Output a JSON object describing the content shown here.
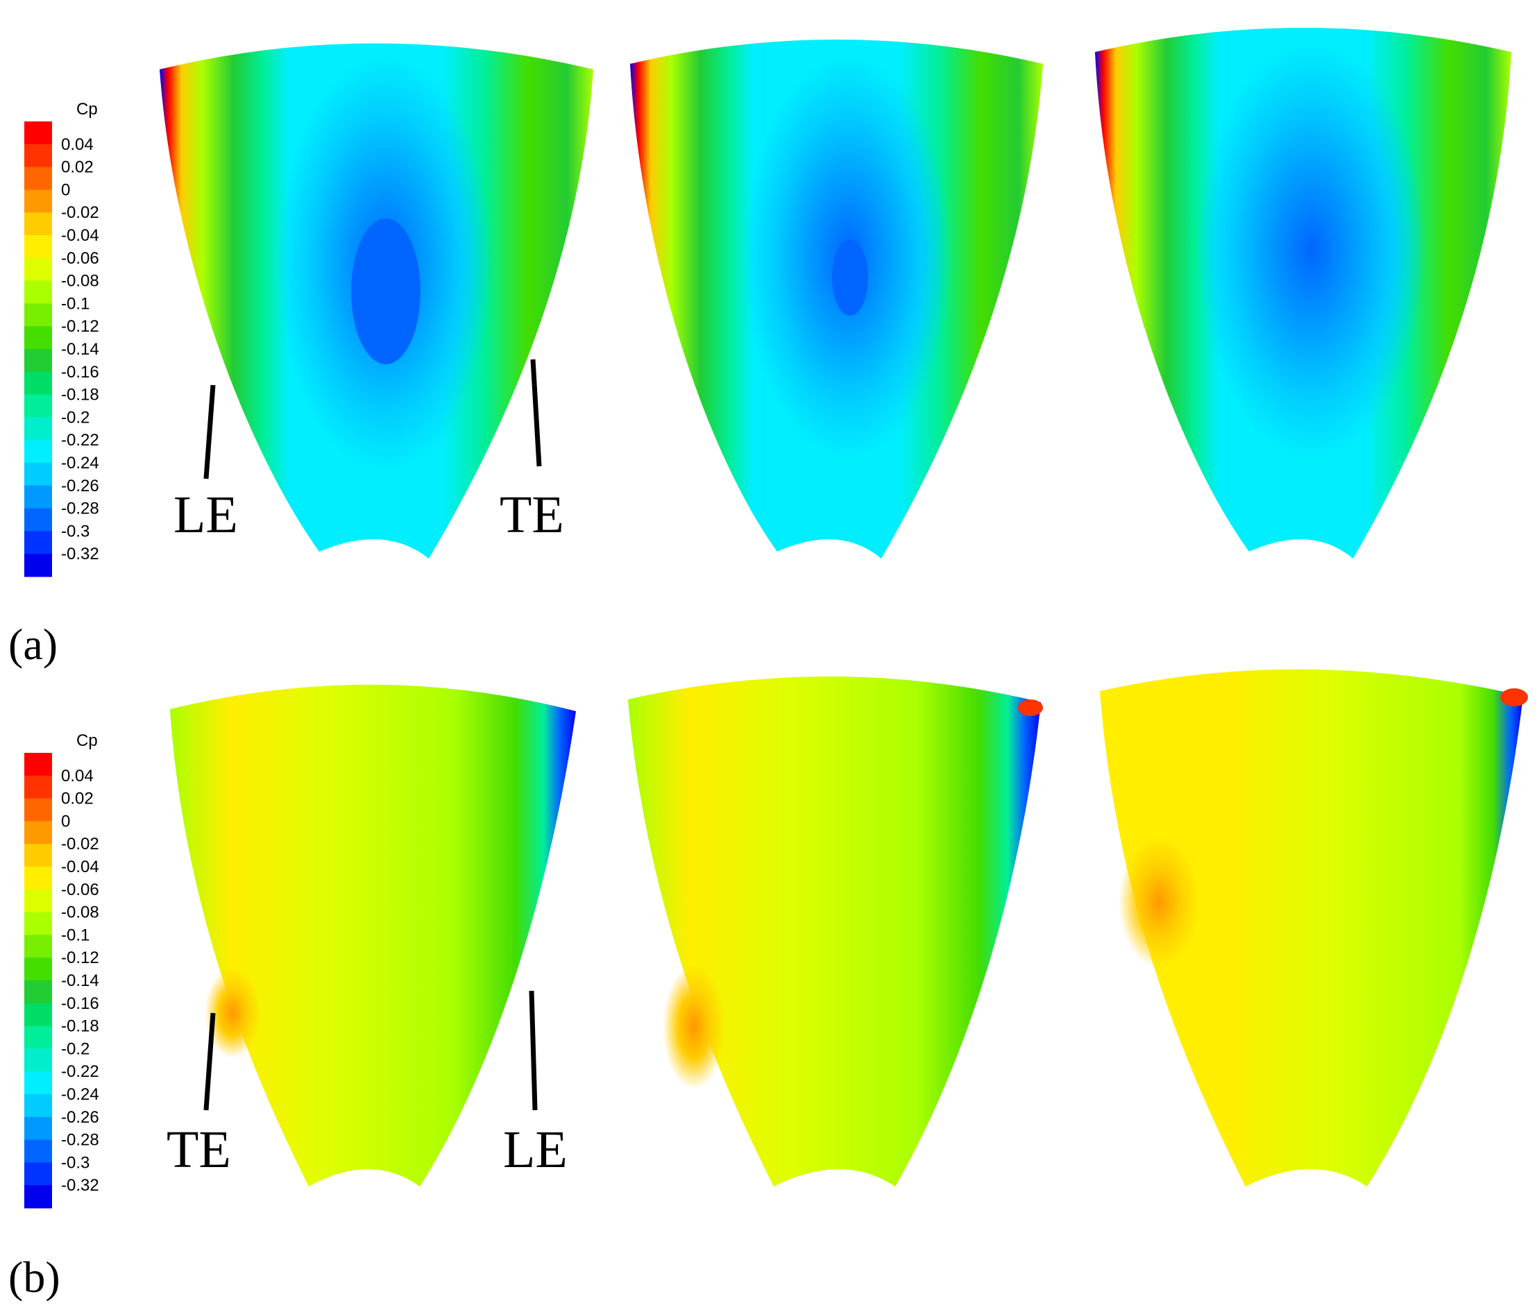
{
  "colorbar": {
    "title": "Cp",
    "ticks": [
      "0.04",
      "0.02",
      "0",
      "-0.02",
      "-0.04",
      "-0.06",
      "-0.08",
      "-0.1",
      "-0.12",
      "-0.14",
      "-0.16",
      "-0.18",
      "-0.2",
      "-0.22",
      "-0.24",
      "-0.26",
      "-0.28",
      "-0.3",
      "-0.32"
    ],
    "colors": [
      "#ff0000",
      "#ff3300",
      "#ff6600",
      "#ff9900",
      "#ffcc00",
      "#ffee00",
      "#ddff00",
      "#aaff00",
      "#77ee00",
      "#44dd00",
      "#22cc33",
      "#00dd66",
      "#00ee99",
      "#00eecc",
      "#00eeff",
      "#00ccff",
      "#0099ff",
      "#0066ff",
      "#0033ff",
      "#0000ee"
    ]
  },
  "panel_a": {
    "label": "(a)",
    "left_callout": "LE",
    "right_callout": "TE"
  },
  "panel_b": {
    "label": "(b)",
    "left_callout": "TE",
    "right_callout": "LE"
  }
}
